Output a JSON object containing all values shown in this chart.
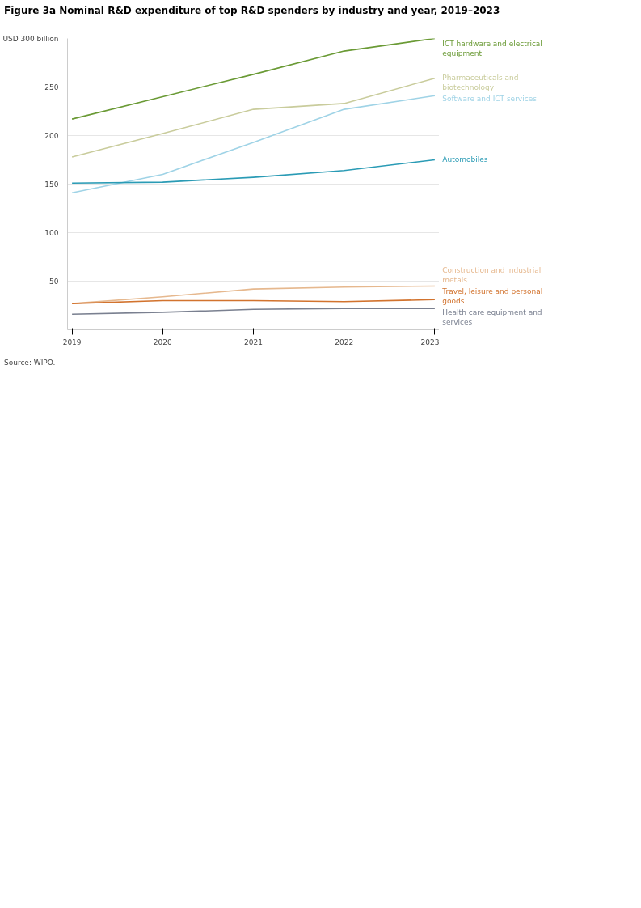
{
  "chart_data": {
    "type": "line",
    "title": "Figure 3a Nominal R&D expenditure  of top R&D spenders by industry and year, 2019–2023",
    "x": [
      2019,
      2020,
      2021,
      2022,
      2023
    ],
    "xlim": [
      2018.95,
      2023.05
    ],
    "xticks": [
      2019,
      2020,
      2021,
      2022,
      2023
    ],
    "ylim": [
      0,
      300
    ],
    "yticks": [
      50,
      100,
      150,
      200,
      250,
      {
        "value": 300,
        "label": "USD 300 billion"
      }
    ],
    "grid": "y",
    "legend": false,
    "marker": "none",
    "line_style": "solid",
    "series": [
      {
        "name": "ICT hardware and electrical equipment",
        "color": "#6a9a35",
        "values": [
          217,
          240,
          263,
          287,
          300
        ]
      },
      {
        "name": "Pharmaceuticals and biotechnology",
        "color": "#c9cc9c",
        "values": [
          178,
          202,
          227,
          233,
          259
        ]
      },
      {
        "name": "Software and ICT services",
        "color": "#9fd3e6",
        "values": [
          141,
          160,
          193,
          227,
          241
        ]
      },
      {
        "name": "Automobiles",
        "color": "#2a9bb5",
        "values": [
          151,
          152,
          157,
          164,
          175
        ]
      },
      {
        "name": "Construction and industrial metals",
        "color": "#e6b88e",
        "values": [
          27,
          34,
          42,
          44,
          45
        ]
      },
      {
        "name": "Travel, leisure and personal goods",
        "color": "#d2732e",
        "values": [
          27,
          30,
          30,
          29,
          31
        ]
      },
      {
        "name": "Health care equipment and services",
        "color": "#7a8090",
        "values": [
          16,
          18,
          21,
          22,
          22
        ]
      }
    ],
    "annotations": [
      "Source: WIPO."
    ]
  }
}
